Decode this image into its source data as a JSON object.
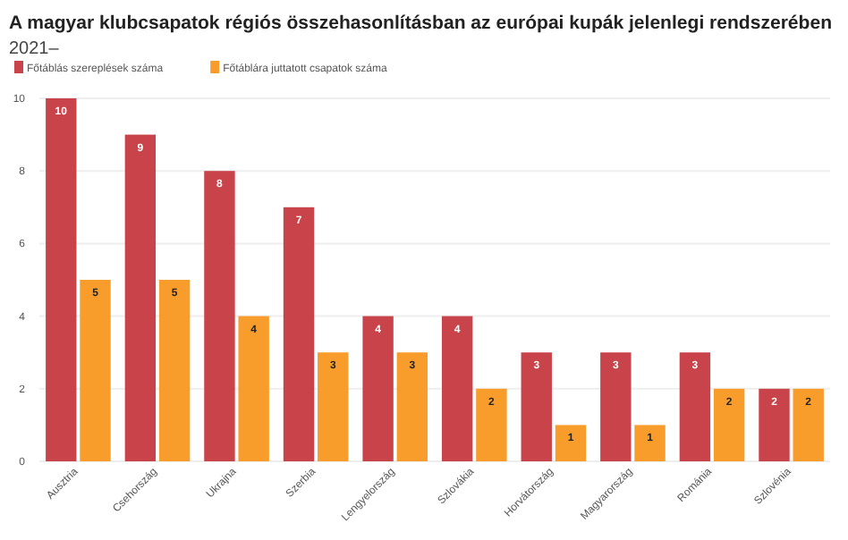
{
  "chart_data": {
    "type": "bar",
    "title": "A magyar klubcsapatok régiós összehasonlításban az európai kupák jelenlegi rendszerében",
    "subtitle": "2021–",
    "categories": [
      "Ausztria",
      "Csehország",
      "Ukrajna",
      "Szerbia",
      "Lengyelország",
      "Szlovákia",
      "Horvátország",
      "Magyarország",
      "Románia",
      "Szlovénia"
    ],
    "series": [
      {
        "name": "Főtáblás szereplések száma",
        "color": "#c9444a",
        "values": [
          10,
          9,
          8,
          7,
          4,
          4,
          3,
          3,
          3,
          2
        ]
      },
      {
        "name": "Főtáblára juttatott csapatok száma",
        "color": "#f89c2c",
        "values": [
          5,
          5,
          4,
          3,
          3,
          2,
          1,
          1,
          2,
          2
        ]
      }
    ],
    "ylim": [
      0,
      10
    ],
    "yticks": [
      0,
      2,
      4,
      6,
      8,
      10
    ],
    "grid": "y",
    "legend": "top left",
    "data_labels": true
  }
}
